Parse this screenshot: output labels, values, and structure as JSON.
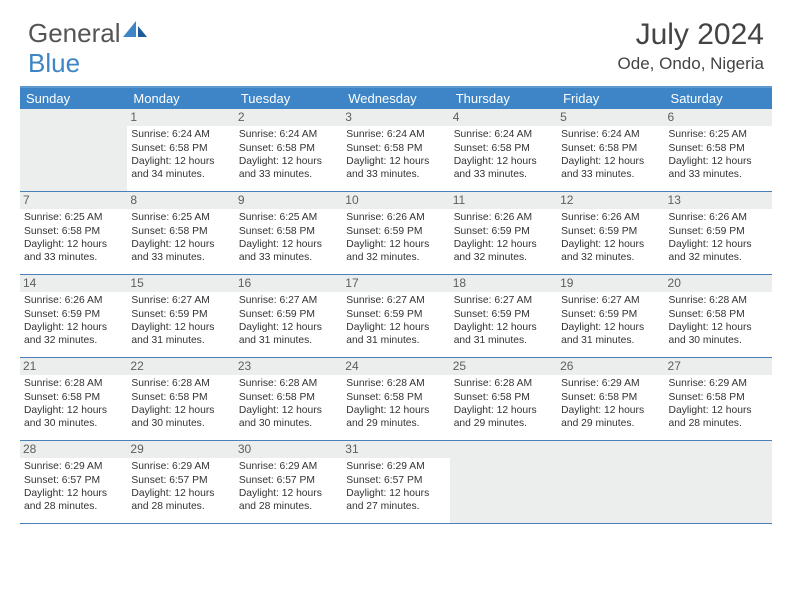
{
  "logo": {
    "text_gray": "General",
    "text_blue": "Blue"
  },
  "header": {
    "month_title": "July 2024",
    "location": "Ode, Ondo, Nigeria"
  },
  "colors": {
    "header_bg": "#3d85c6",
    "border": "#4a80b8",
    "daynum_bg": "#eceded",
    "text": "#333333"
  },
  "day_labels": [
    "Sunday",
    "Monday",
    "Tuesday",
    "Wednesday",
    "Thursday",
    "Friday",
    "Saturday"
  ],
  "weeks": [
    [
      null,
      {
        "n": "1",
        "sr": "6:24 AM",
        "ss": "6:58 PM",
        "dl": "12 hours and 34 minutes."
      },
      {
        "n": "2",
        "sr": "6:24 AM",
        "ss": "6:58 PM",
        "dl": "12 hours and 33 minutes."
      },
      {
        "n": "3",
        "sr": "6:24 AM",
        "ss": "6:58 PM",
        "dl": "12 hours and 33 minutes."
      },
      {
        "n": "4",
        "sr": "6:24 AM",
        "ss": "6:58 PM",
        "dl": "12 hours and 33 minutes."
      },
      {
        "n": "5",
        "sr": "6:24 AM",
        "ss": "6:58 PM",
        "dl": "12 hours and 33 minutes."
      },
      {
        "n": "6",
        "sr": "6:25 AM",
        "ss": "6:58 PM",
        "dl": "12 hours and 33 minutes."
      }
    ],
    [
      {
        "n": "7",
        "sr": "6:25 AM",
        "ss": "6:58 PM",
        "dl": "12 hours and 33 minutes."
      },
      {
        "n": "8",
        "sr": "6:25 AM",
        "ss": "6:58 PM",
        "dl": "12 hours and 33 minutes."
      },
      {
        "n": "9",
        "sr": "6:25 AM",
        "ss": "6:58 PM",
        "dl": "12 hours and 33 minutes."
      },
      {
        "n": "10",
        "sr": "6:26 AM",
        "ss": "6:59 PM",
        "dl": "12 hours and 32 minutes."
      },
      {
        "n": "11",
        "sr": "6:26 AM",
        "ss": "6:59 PM",
        "dl": "12 hours and 32 minutes."
      },
      {
        "n": "12",
        "sr": "6:26 AM",
        "ss": "6:59 PM",
        "dl": "12 hours and 32 minutes."
      },
      {
        "n": "13",
        "sr": "6:26 AM",
        "ss": "6:59 PM",
        "dl": "12 hours and 32 minutes."
      }
    ],
    [
      {
        "n": "14",
        "sr": "6:26 AM",
        "ss": "6:59 PM",
        "dl": "12 hours and 32 minutes."
      },
      {
        "n": "15",
        "sr": "6:27 AM",
        "ss": "6:59 PM",
        "dl": "12 hours and 31 minutes."
      },
      {
        "n": "16",
        "sr": "6:27 AM",
        "ss": "6:59 PM",
        "dl": "12 hours and 31 minutes."
      },
      {
        "n": "17",
        "sr": "6:27 AM",
        "ss": "6:59 PM",
        "dl": "12 hours and 31 minutes."
      },
      {
        "n": "18",
        "sr": "6:27 AM",
        "ss": "6:59 PM",
        "dl": "12 hours and 31 minutes."
      },
      {
        "n": "19",
        "sr": "6:27 AM",
        "ss": "6:59 PM",
        "dl": "12 hours and 31 minutes."
      },
      {
        "n": "20",
        "sr": "6:28 AM",
        "ss": "6:58 PM",
        "dl": "12 hours and 30 minutes."
      }
    ],
    [
      {
        "n": "21",
        "sr": "6:28 AM",
        "ss": "6:58 PM",
        "dl": "12 hours and 30 minutes."
      },
      {
        "n": "22",
        "sr": "6:28 AM",
        "ss": "6:58 PM",
        "dl": "12 hours and 30 minutes."
      },
      {
        "n": "23",
        "sr": "6:28 AM",
        "ss": "6:58 PM",
        "dl": "12 hours and 30 minutes."
      },
      {
        "n": "24",
        "sr": "6:28 AM",
        "ss": "6:58 PM",
        "dl": "12 hours and 29 minutes."
      },
      {
        "n": "25",
        "sr": "6:28 AM",
        "ss": "6:58 PM",
        "dl": "12 hours and 29 minutes."
      },
      {
        "n": "26",
        "sr": "6:29 AM",
        "ss": "6:58 PM",
        "dl": "12 hours and 29 minutes."
      },
      {
        "n": "27",
        "sr": "6:29 AM",
        "ss": "6:58 PM",
        "dl": "12 hours and 28 minutes."
      }
    ],
    [
      {
        "n": "28",
        "sr": "6:29 AM",
        "ss": "6:57 PM",
        "dl": "12 hours and 28 minutes."
      },
      {
        "n": "29",
        "sr": "6:29 AM",
        "ss": "6:57 PM",
        "dl": "12 hours and 28 minutes."
      },
      {
        "n": "30",
        "sr": "6:29 AM",
        "ss": "6:57 PM",
        "dl": "12 hours and 28 minutes."
      },
      {
        "n": "31",
        "sr": "6:29 AM",
        "ss": "6:57 PM",
        "dl": "12 hours and 27 minutes."
      },
      null,
      null,
      null
    ]
  ],
  "labels": {
    "sunrise": "Sunrise:",
    "sunset": "Sunset:",
    "daylight": "Daylight:"
  }
}
